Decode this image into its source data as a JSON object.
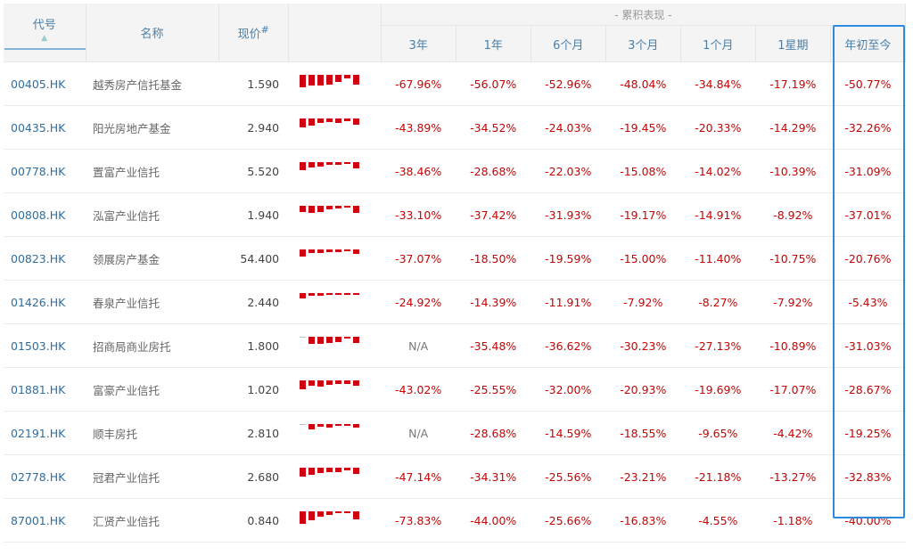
{
  "header": {
    "code": "代号",
    "name": "名称",
    "price": "现价",
    "price_mark": "#",
    "group": "- 累积表现 -",
    "periods": [
      "3年",
      "1年",
      "6个月",
      "3个月",
      "1个月",
      "1星期",
      "年初至今"
    ]
  },
  "colors": {
    "negative": "#cc0000",
    "link": "#2d6fa5",
    "highlight": "#2a8be0"
  },
  "rows": [
    {
      "code": "00405.HK",
      "name": "越秀房产信托基金",
      "price": "1.590",
      "perf": [
        "-67.96%",
        "-56.07%",
        "-52.96%",
        "-48.04%",
        "-34.84%",
        "-17.19%",
        "-50.77%"
      ]
    },
    {
      "code": "00435.HK",
      "name": "阳光房地产基金",
      "price": "2.940",
      "perf": [
        "-43.89%",
        "-34.52%",
        "-24.03%",
        "-19.45%",
        "-20.33%",
        "-14.29%",
        "-32.26%"
      ]
    },
    {
      "code": "00778.HK",
      "name": "置富产业信托",
      "price": "5.520",
      "perf": [
        "-38.46%",
        "-28.68%",
        "-22.03%",
        "-15.08%",
        "-14.02%",
        "-10.39%",
        "-31.09%"
      ]
    },
    {
      "code": "00808.HK",
      "name": "泓富产业信托",
      "price": "1.940",
      "perf": [
        "-33.10%",
        "-37.42%",
        "-31.93%",
        "-19.17%",
        "-14.91%",
        "-8.92%",
        "-37.01%"
      ]
    },
    {
      "code": "00823.HK",
      "name": "领展房产基金",
      "price": "54.400",
      "perf": [
        "-37.07%",
        "-18.50%",
        "-19.59%",
        "-15.00%",
        "-11.40%",
        "-10.75%",
        "-20.76%"
      ]
    },
    {
      "code": "01426.HK",
      "name": "春泉产业信托",
      "price": "2.440",
      "perf": [
        "-24.92%",
        "-14.39%",
        "-11.91%",
        "-7.92%",
        "-8.27%",
        "-7.92%",
        "-5.43%"
      ]
    },
    {
      "code": "01503.HK",
      "name": "招商局商业房托",
      "price": "1.800",
      "perf": [
        "N/A",
        "-35.48%",
        "-36.62%",
        "-30.23%",
        "-27.13%",
        "-10.89%",
        "-31.03%"
      ]
    },
    {
      "code": "01881.HK",
      "name": "富豪产业信托",
      "price": "1.020",
      "perf": [
        "-43.02%",
        "-25.55%",
        "-32.00%",
        "-20.93%",
        "-19.69%",
        "-17.07%",
        "-28.67%"
      ]
    },
    {
      "code": "02191.HK",
      "name": "顺丰房托",
      "price": "2.810",
      "perf": [
        "N/A",
        "-28.68%",
        "-14.59%",
        "-18.55%",
        "-9.65%",
        "-4.42%",
        "-19.25%"
      ]
    },
    {
      "code": "02778.HK",
      "name": "冠君产业信托",
      "price": "2.680",
      "perf": [
        "-47.14%",
        "-34.31%",
        "-25.56%",
        "-23.21%",
        "-21.18%",
        "-13.27%",
        "-32.83%"
      ]
    },
    {
      "code": "87001.HK",
      "name": "汇贤产业信托",
      "price": "0.840",
      "perf": [
        "-73.83%",
        "-44.00%",
        "-25.66%",
        "-16.83%",
        "-4.55%",
        "-1.18%",
        "-40.00%"
      ]
    }
  ]
}
